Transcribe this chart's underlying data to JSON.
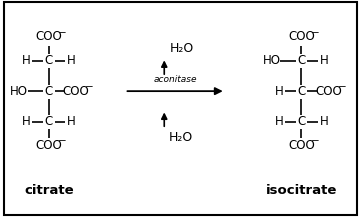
{
  "bg_color": "#ffffff",
  "border_color": "#000000",
  "text_color": "#000000",
  "figsize": [
    3.61,
    2.17
  ],
  "dpi": 100,
  "citrate_label": "citrate",
  "isocitrate_label": "isocitrate",
  "enzyme_label": "aconitase",
  "h2o": "H₂O",
  "font_size_atoms": 8.5,
  "font_size_label": 9.5,
  "font_size_enzyme": 6.5,
  "font_size_h2o": 9
}
